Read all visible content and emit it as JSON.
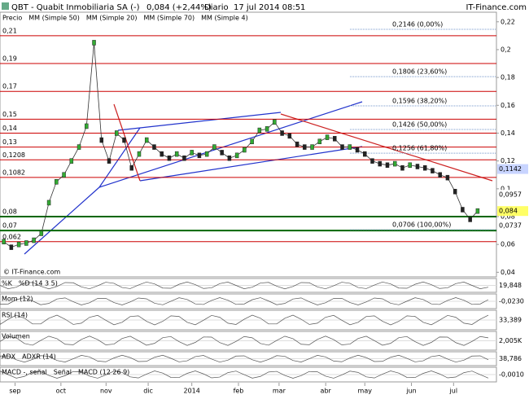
{
  "header": {
    "symbol": "QBT - Quabit Inmobiliaria SA (-)",
    "quote": "0,084 (+2,44%)",
    "period": "Diario",
    "datetime": "17 jul 2014 08:51",
    "site": "IT-Finance.com",
    "watermark": "© IT-Finance.com"
  },
  "legend": [
    {
      "name": "Precio",
      "color": "#000000"
    },
    {
      "name": "MM (Simple 50)",
      "color": "#c8c8e8"
    },
    {
      "name": "MM (Simple 20)",
      "color": "#cc0000"
    },
    {
      "name": "MM (Simple 70)",
      "color": "#0000aa"
    },
    {
      "name": "MM (Simple 4)",
      "color": "#006600"
    }
  ],
  "chart_data": {
    "type": "candle-line",
    "values": [
      0.062,
      0.058,
      0.06,
      0.061,
      0.063,
      0.068,
      0.09,
      0.105,
      0.11,
      0.12,
      0.13,
      0.145,
      0.205,
      0.135,
      0.12,
      0.14,
      0.135,
      0.115,
      0.125,
      0.135,
      0.13,
      0.125,
      0.122,
      0.125,
      0.122,
      0.126,
      0.124,
      0.125,
      0.13,
      0.126,
      0.122,
      0.124,
      0.128,
      0.134,
      0.142,
      0.143,
      0.148,
      0.14,
      0.138,
      0.132,
      0.13,
      0.13,
      0.134,
      0.137,
      0.136,
      0.13,
      0.13,
      0.128,
      0.125,
      0.12,
      0.118,
      0.117,
      0.118,
      0.115,
      0.117,
      0.116,
      0.115,
      0.113,
      0.11,
      0.108,
      0.098,
      0.085,
      0.078,
      0.084
    ],
    "xlim": [
      -0.5,
      65.5
    ],
    "xticks": [
      {
        "value": 1.5,
        "label": "sep"
      },
      {
        "value": 7.6,
        "label": "oct"
      },
      {
        "value": 13.6,
        "label": "nov"
      },
      {
        "value": 19.2,
        "label": "dic"
      },
      {
        "value": 25,
        "label": "2014"
      },
      {
        "value": 31.2,
        "label": "feb"
      },
      {
        "value": 36.6,
        "label": "mar"
      },
      {
        "value": 42.8,
        "label": "abr"
      },
      {
        "value": 48,
        "label": "may"
      },
      {
        "value": 54.2,
        "label": "jun"
      },
      {
        "value": 59.8,
        "label": "jul"
      }
    ],
    "ylim": [
      0.0367,
      0.2269
    ],
    "yticks": [
      {
        "value": 0.22,
        "label": "0,22"
      },
      {
        "value": 0.2,
        "label": "0,2"
      },
      {
        "value": 0.18,
        "label": "0,18"
      },
      {
        "value": 0.16,
        "label": "0,16"
      },
      {
        "value": 0.14,
        "label": "0,14"
      },
      {
        "value": 0.12,
        "label": "0,12"
      },
      {
        "value": 0.1,
        "label": "0,1"
      },
      {
        "value": 0.08,
        "label": "0,08"
      },
      {
        "value": 0.06,
        "label": "0,06"
      },
      {
        "value": 0.04,
        "label": "0,04"
      }
    ],
    "levels": [
      {
        "value": 0.21,
        "label": "0,21",
        "color": "#cc0000"
      },
      {
        "value": 0.19,
        "label": "0,19",
        "color": "#cc0000"
      },
      {
        "value": 0.17,
        "label": "0,17",
        "color": "#cc0000"
      },
      {
        "value": 0.15,
        "label": "0,15",
        "color": "#cc0000"
      },
      {
        "value": 0.14,
        "label": "0,14",
        "color": "#cc0000"
      },
      {
        "value": 0.13,
        "label": "0,13",
        "color": "#cc0000"
      },
      {
        "value": 0.1208,
        "label": "0,1208",
        "color": "#cc0000"
      },
      {
        "value": 0.1082,
        "label": "0,1082",
        "color": "#cc0000"
      },
      {
        "value": 0.08,
        "label": "0,08",
        "color": "#006600"
      },
      {
        "value": 0.07,
        "label": "0,07",
        "color": "#006600"
      },
      {
        "value": 0.062,
        "label": "0,062",
        "color": "#cc0000"
      }
    ],
    "fib_levels": [
      {
        "value": 0.2146,
        "label": "0,2146 (0,00%)"
      },
      {
        "value": 0.1806,
        "label": "0,1806 (23,60%)"
      },
      {
        "value": 0.1596,
        "label": "0,1596 (38,20%)"
      },
      {
        "value": 0.1426,
        "label": "0,1426 (50,00%)"
      },
      {
        "value": 0.1256,
        "label": "0,1256 (61,80%)"
      },
      {
        "value": 0.0706,
        "label": "0,0706 (100,00%)"
      }
    ],
    "right_labels": [
      {
        "value": 0.1142,
        "label": "0,1142",
        "bg": "#c8d4ff"
      },
      {
        "value": 0.0957,
        "label": "0,0957",
        "bg": "#ffffff"
      },
      {
        "value": 0.084,
        "label": "0,084",
        "bg": "#ffff66"
      },
      {
        "value": 0.0737,
        "label": "0,0737",
        "bg": "#ffffff"
      }
    ]
  },
  "panels": [
    {
      "labels": [
        "%K",
        "%D (14 3 5)"
      ],
      "readout": "19,848"
    },
    {
      "labels": [
        "Mom (12)"
      ],
      "readout": "-0,0230"
    },
    {
      "labels": [
        "RSI (14)"
      ],
      "readout": "33,389"
    },
    {
      "labels": [
        "Volumen"
      ],
      "readout": "2,005K"
    },
    {
      "labels": [
        "ADX",
        "ADXR (14)"
      ],
      "readout": "38,786"
    },
    {
      "labels": [
        "MACD -, señal",
        "Señal",
        "MACD (12 26 9)"
      ],
      "readout": "-0,0010"
    }
  ]
}
